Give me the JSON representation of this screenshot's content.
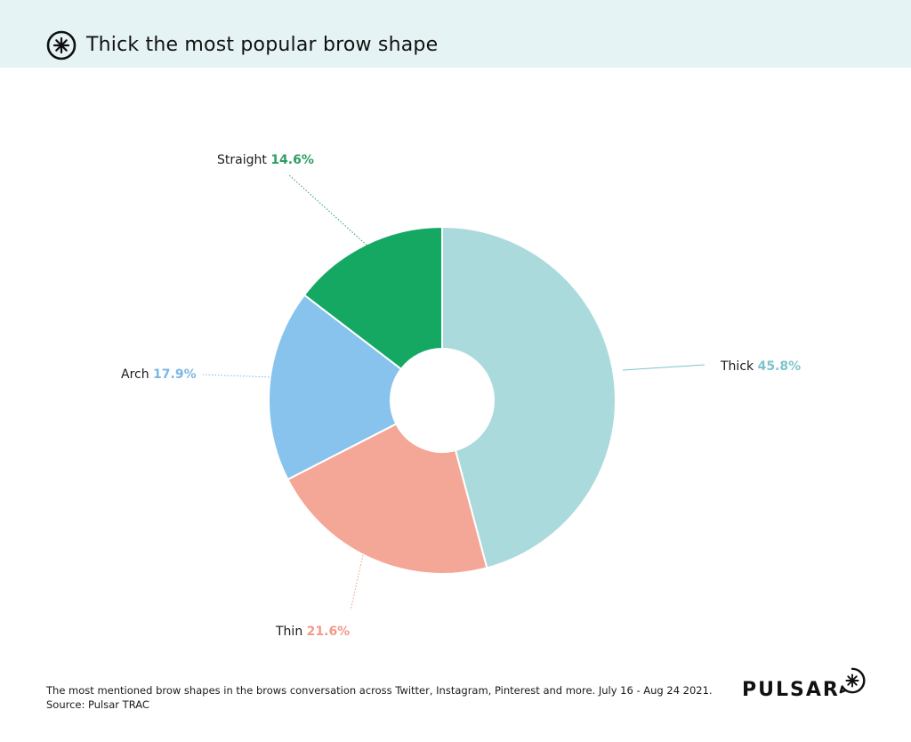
{
  "header": {
    "title": "Thick the most popular brow shape"
  },
  "chart_data": {
    "type": "pie",
    "donut": true,
    "title": "Thick the most popular brow shape",
    "series": [
      {
        "name": "Thick",
        "value": 45.8,
        "value_label": "45.8%",
        "color": "#abdadc",
        "label_color": "#7fc3cf"
      },
      {
        "name": "Thin",
        "value": 21.6,
        "value_label": "21.6%",
        "color": "#f4a797",
        "label_color": "#f29a87"
      },
      {
        "name": "Arch",
        "value": 17.9,
        "value_label": "17.9%",
        "color": "#87c3ec",
        "label_color": "#7ab7e3"
      },
      {
        "name": "Straight",
        "value": 14.6,
        "value_label": "14.6%",
        "color": "#14a862",
        "label_color": "#2e9e63"
      }
    ],
    "legend": "none"
  },
  "footer": {
    "note": "The most mentioned brow shapes in the brows conversation across Twitter, Instagram, Pinterest and more. July 16 - Aug 24 2021.",
    "source": "Source: Pulsar TRAC",
    "brand": "PULSAR"
  }
}
